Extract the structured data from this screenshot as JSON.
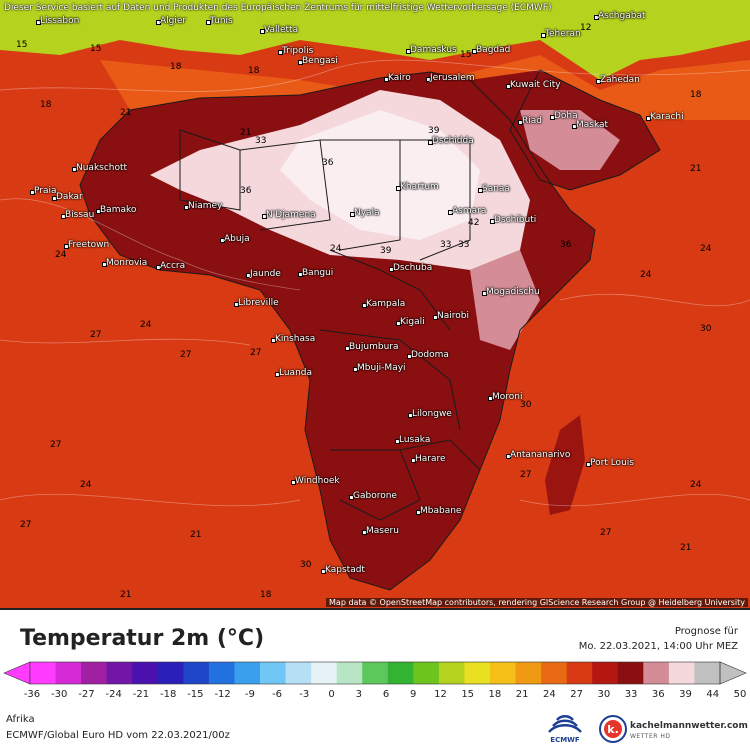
{
  "map": {
    "banner": "Dieser Service basiert auf Daten und Produkten des Europäischen Zentrums für mittelfristige Wettervorhersage (ECMWF)",
    "attribution": "Map data © OpenStreetMap contributors, rendering GIScience Research Group @ Heidelberg University",
    "colors": {
      "ocean": "#d83a14",
      "land_hot": "#8a0f10",
      "desert": "#f4d8dc",
      "med": "#e85a16",
      "north_cool": "#b4d21e",
      "border": "#1a1a1a"
    },
    "cities": [
      {
        "name": "Lissabon"
      },
      {
        "name": "Algier"
      },
      {
        "name": "Tunis"
      },
      {
        "name": "Valletta"
      },
      {
        "name": "Tripolis"
      },
      {
        "name": "Bengasi"
      },
      {
        "name": "Kairo"
      },
      {
        "name": "Jerusalem"
      },
      {
        "name": "Damaskus"
      },
      {
        "name": "Bagdad"
      },
      {
        "name": "Teheran"
      },
      {
        "name": "Aschgabat"
      },
      {
        "name": "Kuwait City"
      },
      {
        "name": "Zahedan"
      },
      {
        "name": "Riad"
      },
      {
        "name": "Doha"
      },
      {
        "name": "Maskat"
      },
      {
        "name": "Karachi"
      },
      {
        "name": "Dschidda"
      },
      {
        "name": "Sanaa"
      },
      {
        "name": "Dschibuti"
      },
      {
        "name": "Khartum"
      },
      {
        "name": "Asmara"
      },
      {
        "name": "Nuakschott"
      },
      {
        "name": "Praia"
      },
      {
        "name": "Dakar"
      },
      {
        "name": "Bissau"
      },
      {
        "name": "Bamako"
      },
      {
        "name": "Niamey"
      },
      {
        "name": "N'Djamena"
      },
      {
        "name": "Nyala"
      },
      {
        "name": "Freetown"
      },
      {
        "name": "Monrovia"
      },
      {
        "name": "Accra"
      },
      {
        "name": "Abuja"
      },
      {
        "name": "Jaunde"
      },
      {
        "name": "Bangui"
      },
      {
        "name": "Dschuba"
      },
      {
        "name": "Mogadischu"
      },
      {
        "name": "Libreville"
      },
      {
        "name": "Kampala"
      },
      {
        "name": "Kigali"
      },
      {
        "name": "Nairobi"
      },
      {
        "name": "Kinshasa"
      },
      {
        "name": "Bujumbura"
      },
      {
        "name": "Dodoma"
      },
      {
        "name": "Mbuji-Mayi"
      },
      {
        "name": "Luanda"
      },
      {
        "name": "Moroni"
      },
      {
        "name": "Lilongwe"
      },
      {
        "name": "Lusaka"
      },
      {
        "name": "Antananarivo"
      },
      {
        "name": "Harare"
      },
      {
        "name": "Port Louis"
      },
      {
        "name": "Windhoek"
      },
      {
        "name": "Gaborone"
      },
      {
        "name": "Mbabane"
      },
      {
        "name": "Maseru"
      },
      {
        "name": "Kapstadt"
      }
    ],
    "isotherms": [
      "15",
      "15",
      "18",
      "18",
      "18",
      "21",
      "21",
      "21",
      "24",
      "24",
      "24",
      "24",
      "24",
      "27",
      "27",
      "27",
      "27",
      "27",
      "30",
      "33",
      "36",
      "36",
      "39",
      "39",
      "42",
      "36",
      "30",
      "33",
      "21",
      "18",
      "15",
      "12",
      "27",
      "24",
      "21",
      "18",
      "30",
      "33",
      "27",
      "24",
      "21"
    ]
  },
  "legend": {
    "title": "Temperatur 2m (°C)",
    "forecast_label": "Prognose für",
    "forecast_datetime": "Mo. 22.03.2021, 14:00 Uhr MEZ",
    "ticks": [
      "-36",
      "-30",
      "-27",
      "-24",
      "-21",
      "-18",
      "-15",
      "-12",
      "-9",
      "-6",
      "-3",
      "0",
      "3",
      "6",
      "9",
      "12",
      "15",
      "18",
      "21",
      "24",
      "27",
      "30",
      "33",
      "36",
      "39",
      "44",
      "50"
    ],
    "colors": [
      "#ff3cff",
      "#d52ad5",
      "#a01fa3",
      "#7216a8",
      "#4b12b0",
      "#2a1fb8",
      "#1f46c8",
      "#2370e0",
      "#3aa0ee",
      "#70c6f4",
      "#b6e0f6",
      "#e6f2f6",
      "#b8e6c4",
      "#5cc85c",
      "#32b432",
      "#6cc41c",
      "#b4d21e",
      "#e8e020",
      "#f4c018",
      "#f09a14",
      "#e86a12",
      "#d83a14",
      "#b41612",
      "#8a0f10",
      "#d48c96",
      "#f4d8dc",
      "#c0c0c0"
    ],
    "region": "Afrika",
    "model": "ECMWF/Global Euro HD vom  22.03.2021/00z",
    "ecmwf_logo_text": "ECMWF",
    "brand_name": "kachelmannwetter.com",
    "brand_sub": "WETTER HD"
  }
}
